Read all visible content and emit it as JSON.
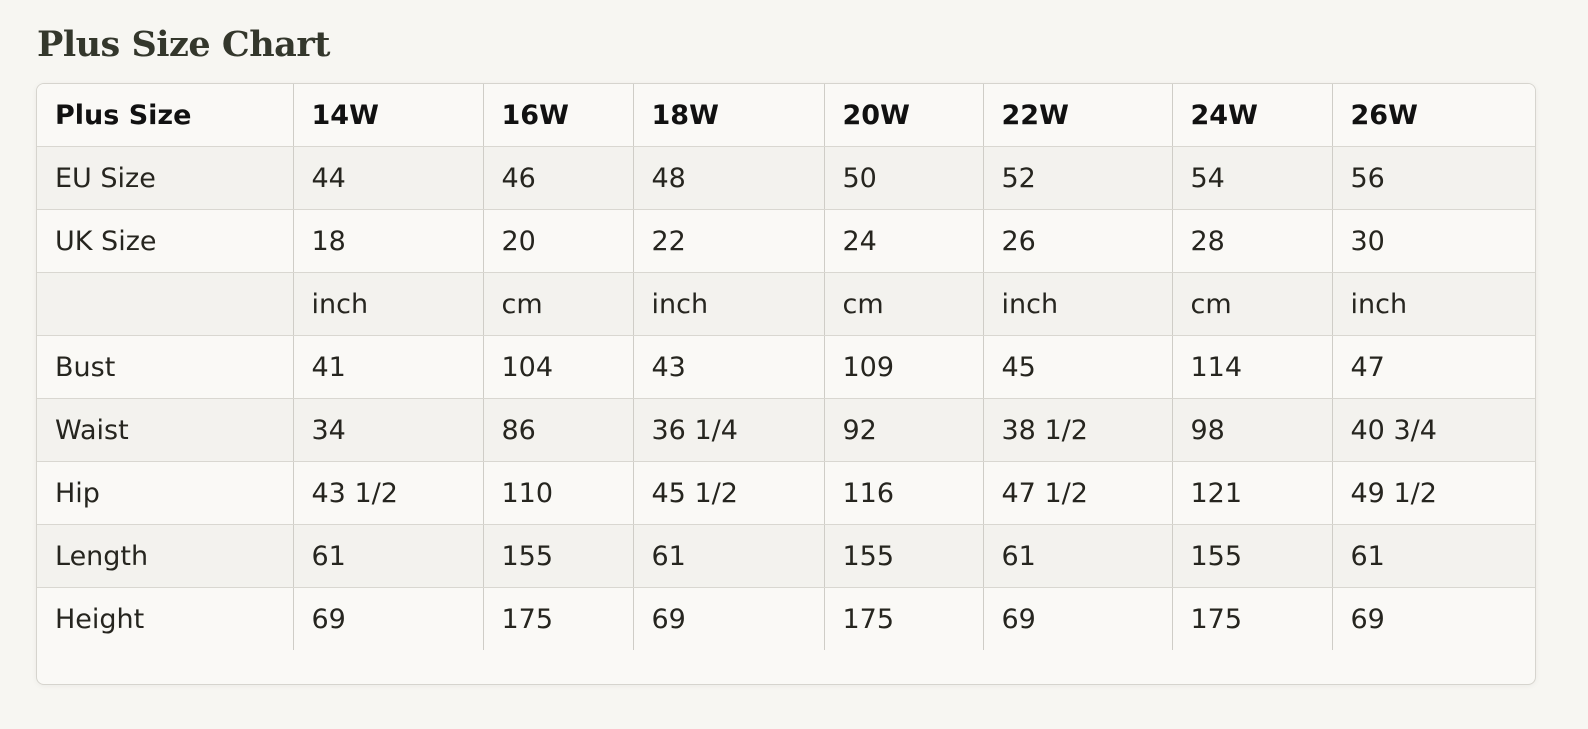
{
  "title": "Plus Size Chart",
  "table": {
    "header": [
      "Plus Size",
      "14W",
      "16W",
      "18W",
      "20W",
      "22W",
      "24W",
      "26W"
    ],
    "rows": [
      [
        "EU Size",
        "44",
        "46",
        "48",
        "50",
        "52",
        "54",
        "56"
      ],
      [
        "UK Size",
        "18",
        "20",
        "22",
        "24",
        "26",
        "28",
        "30"
      ],
      [
        "",
        "inch",
        "cm",
        "inch",
        "cm",
        "inch",
        "cm",
        "inch"
      ],
      [
        "Bust",
        "41",
        "104",
        "43",
        "109",
        "45",
        "114",
        "47"
      ],
      [
        "Waist",
        "34",
        "86",
        "36 1/4",
        "92",
        "38 1/2",
        "98",
        "40 3/4"
      ],
      [
        "Hip",
        "43 1/2",
        "110",
        "45 1/2",
        "116",
        "47 1/2",
        "121",
        "49 1/2"
      ],
      [
        "Length",
        "61",
        "155",
        "61",
        "155",
        "61",
        "155",
        "61"
      ],
      [
        "Height",
        "69",
        "175",
        "69",
        "175",
        "69",
        "175",
        "69"
      ]
    ]
  },
  "colors": {
    "background": "#f7f6f2",
    "title": "#34372c",
    "border": "#d6d4ce",
    "stripe": "#f3f2ee"
  }
}
